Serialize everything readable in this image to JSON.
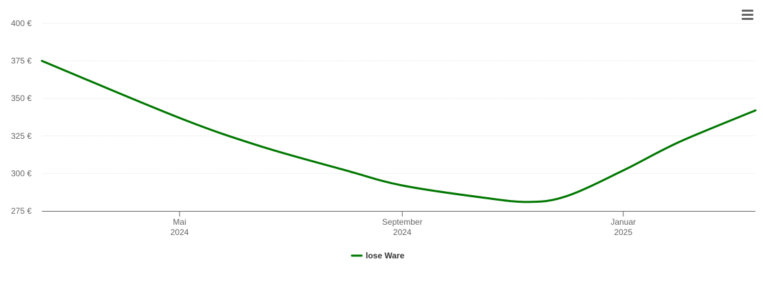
{
  "chart_data": {
    "type": "line",
    "title": "",
    "xlabel": "",
    "ylabel": "",
    "y_unit_suffix": " €",
    "ylim": [
      275,
      400
    ],
    "yticks": [
      275,
      300,
      325,
      350,
      375,
      400
    ],
    "xlim": [
      "2024-02-15",
      "2025-03-15"
    ],
    "xticks": [
      {
        "date": "2024-05-01",
        "line1": "Mai",
        "line2": "2024"
      },
      {
        "date": "2024-09-01",
        "line1": "September",
        "line2": "2024"
      },
      {
        "date": "2025-01-01",
        "line1": "Januar",
        "line2": "2025"
      }
    ],
    "grid": true,
    "legend_position": "bottom-center",
    "series": [
      {
        "name": "lose Ware",
        "color": "#007700",
        "points": [
          {
            "x": "2024-02-15",
            "y": 375
          },
          {
            "x": "2024-05-01",
            "y": 337
          },
          {
            "x": "2024-06-15",
            "y": 318
          },
          {
            "x": "2024-08-01",
            "y": 302
          },
          {
            "x": "2024-09-01",
            "y": 292
          },
          {
            "x": "2024-10-15",
            "y": 284
          },
          {
            "x": "2024-11-10",
            "y": 281
          },
          {
            "x": "2024-12-01",
            "y": 285
          },
          {
            "x": "2025-01-01",
            "y": 302
          },
          {
            "x": "2025-02-01",
            "y": 321
          },
          {
            "x": "2025-03-15",
            "y": 342
          }
        ]
      }
    ]
  },
  "menu": {
    "icon": "hamburger-menu-icon"
  }
}
